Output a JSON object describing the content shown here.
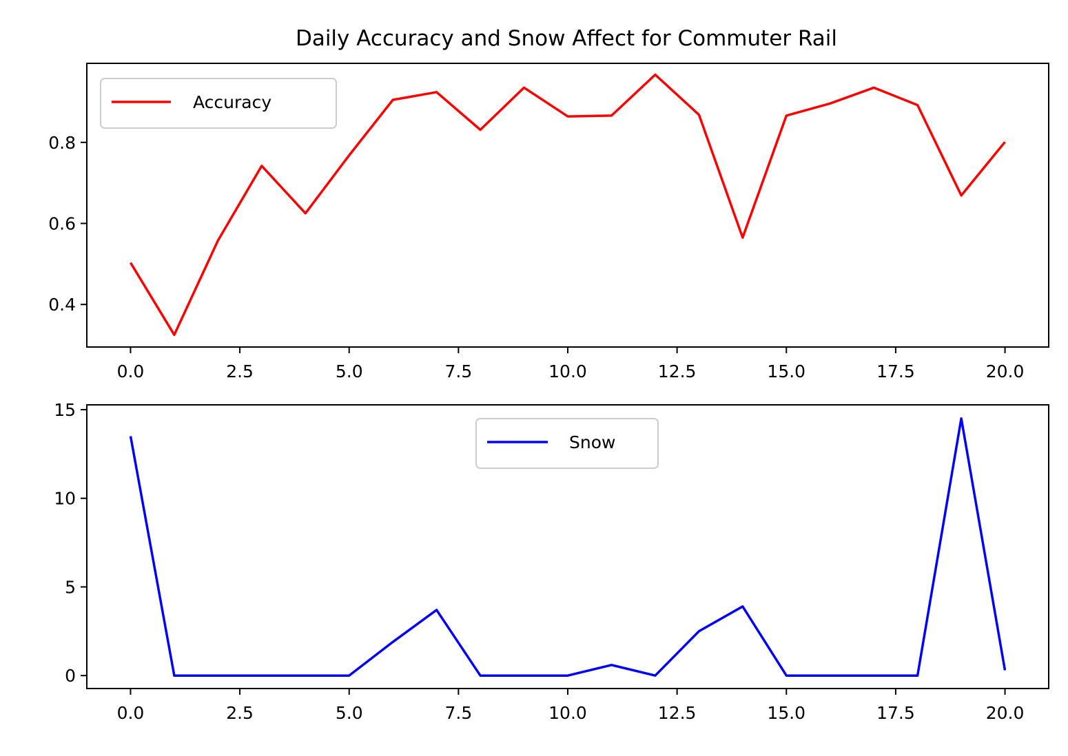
{
  "chart_data": [
    {
      "type": "line",
      "title": "Daily Accuracy and Snow Affect for Commuter Rail",
      "xlabel": "",
      "ylabel": "",
      "xlim": [
        -1,
        21
      ],
      "ylim": [
        0.295,
        0.995
      ],
      "xticks": [
        "0.0",
        "2.5",
        "5.0",
        "7.5",
        "10.0",
        "12.5",
        "15.0",
        "17.5",
        "20.0"
      ],
      "yticks": [
        "0.4",
        "0.6",
        "0.8"
      ],
      "grid": false,
      "legend_position": "upper left",
      "series": [
        {
          "name": "Accuracy",
          "color": "#ff0000",
          "x": [
            0,
            1,
            2,
            3,
            4,
            5,
            6,
            7,
            8,
            9,
            10,
            11,
            12,
            13,
            14,
            15,
            16,
            17,
            18,
            19,
            20
          ],
          "y": [
            0.503,
            0.325,
            0.558,
            0.742,
            0.625,
            0.768,
            0.905,
            0.924,
            0.831,
            0.935,
            0.864,
            0.866,
            0.967,
            0.868,
            0.565,
            0.866,
            0.896,
            0.935,
            0.892,
            0.669,
            0.801
          ]
        }
      ]
    },
    {
      "type": "line",
      "title": "",
      "xlabel": "",
      "ylabel": "",
      "xlim": [
        -1,
        21
      ],
      "ylim": [
        -0.73,
        15.27
      ],
      "xticks": [
        "0.0",
        "2.5",
        "5.0",
        "7.5",
        "10.0",
        "12.5",
        "15.0",
        "17.5",
        "20.0"
      ],
      "yticks": [
        "0",
        "5",
        "10",
        "15"
      ],
      "grid": false,
      "legend_position": "upper center",
      "series": [
        {
          "name": "Snow",
          "color": "#0000ff",
          "x": [
            0,
            1,
            2,
            3,
            4,
            5,
            6,
            7,
            8,
            9,
            10,
            11,
            12,
            13,
            14,
            15,
            16,
            17,
            18,
            19,
            20
          ],
          "y": [
            13.5,
            0,
            0,
            0,
            0,
            0,
            1.9,
            3.7,
            0,
            0,
            0,
            0.6,
            0,
            2.5,
            3.9,
            0,
            0,
            0,
            0,
            14.5,
            0.3
          ]
        }
      ]
    }
  ]
}
